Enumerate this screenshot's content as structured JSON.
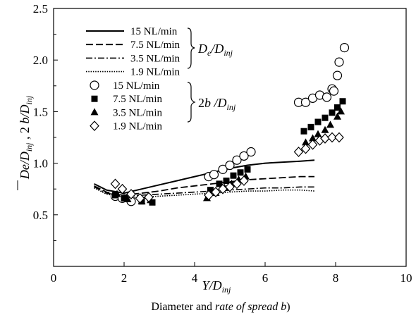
{
  "chart_data": {
    "type": "scatter",
    "xlabel": "Y/D_inj",
    "ylabel": "De/D_inj , 2 b/D_inj",
    "caption": {
      "plain": "Diameter and ",
      "italic": "rate of spread b",
      "tail": ")"
    },
    "xlim": [
      0,
      10
    ],
    "ylim": [
      0,
      2.5
    ],
    "xticks": [
      "0",
      "2",
      "4",
      "6",
      "8",
      "10"
    ],
    "yticks": [
      "0.5",
      "1.0",
      "1.5",
      "2.0",
      "2.5"
    ],
    "grid": false,
    "legend_position": "top-left",
    "legend_groups": [
      {
        "label": "De/Dinj",
        "entries": [
          "15 NL/min",
          "7.5 NL/min",
          "3.5 NL/min",
          "1.9 NL/min"
        ]
      },
      {
        "label": "2b /Dinj",
        "entries": [
          "15 NL/min",
          "7.5 NL/min",
          "3.5 NL/min",
          "1.9 NL/min"
        ]
      }
    ],
    "line_series": [
      {
        "name": "15 NL/min",
        "style": "solid",
        "points": [
          [
            1.15,
            0.8
          ],
          [
            1.5,
            0.74
          ],
          [
            2.0,
            0.71
          ],
          [
            2.5,
            0.75
          ],
          [
            3.0,
            0.79
          ],
          [
            3.5,
            0.83
          ],
          [
            4.0,
            0.87
          ],
          [
            4.5,
            0.91
          ],
          [
            5.0,
            0.95
          ],
          [
            5.5,
            0.98
          ],
          [
            6.0,
            1.0
          ],
          [
            6.5,
            1.01
          ],
          [
            7.0,
            1.02
          ],
          [
            7.4,
            1.03
          ]
        ]
      },
      {
        "name": "7.5 NL/min",
        "style": "dash",
        "points": [
          [
            1.15,
            0.78
          ],
          [
            1.5,
            0.72
          ],
          [
            2.0,
            0.69
          ],
          [
            2.5,
            0.71
          ],
          [
            3.0,
            0.73
          ],
          [
            3.5,
            0.76
          ],
          [
            4.0,
            0.78
          ],
          [
            4.5,
            0.8
          ],
          [
            5.0,
            0.82
          ],
          [
            5.5,
            0.84
          ],
          [
            6.0,
            0.85
          ],
          [
            6.5,
            0.86
          ],
          [
            7.0,
            0.87
          ],
          [
            7.4,
            0.87
          ]
        ]
      },
      {
        "name": "3.5 NL/min",
        "style": "dashdot",
        "points": [
          [
            1.15,
            0.77
          ],
          [
            1.5,
            0.71
          ],
          [
            2.0,
            0.68
          ],
          [
            2.5,
            0.69
          ],
          [
            3.0,
            0.7
          ],
          [
            3.5,
            0.71
          ],
          [
            4.0,
            0.72
          ],
          [
            4.5,
            0.73
          ],
          [
            5.0,
            0.74
          ],
          [
            5.5,
            0.75
          ],
          [
            6.0,
            0.76
          ],
          [
            6.5,
            0.76
          ],
          [
            7.0,
            0.77
          ],
          [
            7.4,
            0.77
          ]
        ]
      },
      {
        "name": "1.9 NL/min",
        "style": "dotted",
        "points": [
          [
            1.15,
            0.76
          ],
          [
            1.5,
            0.7
          ],
          [
            2.0,
            0.67
          ],
          [
            2.5,
            0.67
          ],
          [
            3.0,
            0.68
          ],
          [
            3.5,
            0.69
          ],
          [
            4.0,
            0.7
          ],
          [
            4.5,
            0.71
          ],
          [
            5.0,
            0.72
          ],
          [
            5.5,
            0.73
          ],
          [
            6.0,
            0.73
          ],
          [
            6.5,
            0.74
          ],
          [
            7.0,
            0.74
          ],
          [
            7.4,
            0.73
          ]
        ]
      }
    ],
    "marker_series": [
      {
        "name": "15 NL/min",
        "marker": "circle-open",
        "points": [
          [
            1.75,
            0.68
          ],
          [
            1.95,
            0.66
          ],
          [
            2.2,
            0.63
          ],
          [
            4.4,
            0.87
          ],
          [
            4.55,
            0.89
          ],
          [
            4.8,
            0.94
          ],
          [
            5.0,
            0.98
          ],
          [
            5.2,
            1.03
          ],
          [
            5.4,
            1.07
          ],
          [
            5.6,
            1.11
          ],
          [
            6.95,
            1.59
          ],
          [
            7.15,
            1.59
          ],
          [
            7.35,
            1.63
          ],
          [
            7.55,
            1.66
          ],
          [
            7.75,
            1.64
          ],
          [
            7.9,
            1.72
          ],
          [
            7.95,
            1.7
          ],
          [
            8.05,
            1.85
          ],
          [
            8.1,
            1.98
          ],
          [
            8.25,
            2.12
          ]
        ]
      },
      {
        "name": "7.5 NL/min",
        "marker": "square-filled",
        "points": [
          [
            1.75,
            0.69
          ],
          [
            2.0,
            0.66
          ],
          [
            2.5,
            0.63
          ],
          [
            2.8,
            0.62
          ],
          [
            4.45,
            0.74
          ],
          [
            4.7,
            0.8
          ],
          [
            4.9,
            0.83
          ],
          [
            5.1,
            0.88
          ],
          [
            5.3,
            0.91
          ],
          [
            5.5,
            0.94
          ],
          [
            7.1,
            1.31
          ],
          [
            7.3,
            1.35
          ],
          [
            7.5,
            1.4
          ],
          [
            7.7,
            1.44
          ],
          [
            7.9,
            1.49
          ],
          [
            8.05,
            1.54
          ],
          [
            8.2,
            1.6
          ]
        ]
      },
      {
        "name": "3.5 NL/min",
        "marker": "triangle-filled",
        "points": [
          [
            1.8,
            0.7
          ],
          [
            2.1,
            0.65
          ],
          [
            2.5,
            0.63
          ],
          [
            2.75,
            0.64
          ],
          [
            4.35,
            0.66
          ],
          [
            4.6,
            0.71
          ],
          [
            4.85,
            0.76
          ],
          [
            5.05,
            0.8
          ],
          [
            5.25,
            0.84
          ],
          [
            5.45,
            0.87
          ],
          [
            7.15,
            1.2
          ],
          [
            7.35,
            1.24
          ],
          [
            7.5,
            1.28
          ],
          [
            7.7,
            1.32
          ],
          [
            7.85,
            1.37
          ],
          [
            8.05,
            1.45
          ],
          [
            8.15,
            1.5
          ]
        ]
      },
      {
        "name": "1.9 NL/min",
        "marker": "diamond-open",
        "points": [
          [
            1.75,
            0.8
          ],
          [
            1.95,
            0.75
          ],
          [
            2.2,
            0.7
          ],
          [
            2.45,
            0.66
          ],
          [
            2.7,
            0.67
          ],
          [
            4.4,
            0.69
          ],
          [
            4.6,
            0.72
          ],
          [
            4.8,
            0.75
          ],
          [
            5.0,
            0.77
          ],
          [
            5.2,
            0.8
          ],
          [
            5.4,
            0.83
          ],
          [
            6.95,
            1.11
          ],
          [
            7.15,
            1.14
          ],
          [
            7.35,
            1.18
          ],
          [
            7.55,
            1.22
          ],
          [
            7.7,
            1.24
          ],
          [
            7.9,
            1.25
          ],
          [
            8.1,
            1.25
          ]
        ]
      }
    ]
  }
}
